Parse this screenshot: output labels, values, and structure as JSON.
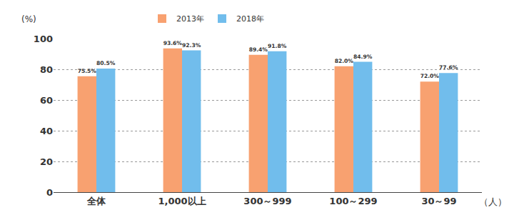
{
  "chart_data": {
    "type": "bar",
    "y_label": "(%)",
    "x_label": "（人）",
    "categories": [
      "全体",
      "1,000以上",
      "300～999",
      "100～299",
      "30～99"
    ],
    "series": [
      {
        "name": "2013年",
        "color": "#f8a170",
        "values": [
          75.5,
          93.6,
          89.4,
          82.0,
          72.0
        ],
        "value_labels": [
          "75.5%",
          "93.6%",
          "89.4%",
          "82.0%",
          "72.0%"
        ]
      },
      {
        "name": "2018年",
        "color": "#71bdec",
        "values": [
          80.5,
          92.3,
          91.8,
          84.9,
          77.6
        ],
        "value_labels": [
          "80.5%",
          "92.3%",
          "91.8%",
          "84.9%",
          "77.6%"
        ]
      }
    ],
    "ylim": [
      0,
      100
    ],
    "yticks": [
      0,
      20,
      40,
      60,
      80,
      100
    ],
    "grid": true,
    "data_labels": true,
    "legend": "top"
  }
}
